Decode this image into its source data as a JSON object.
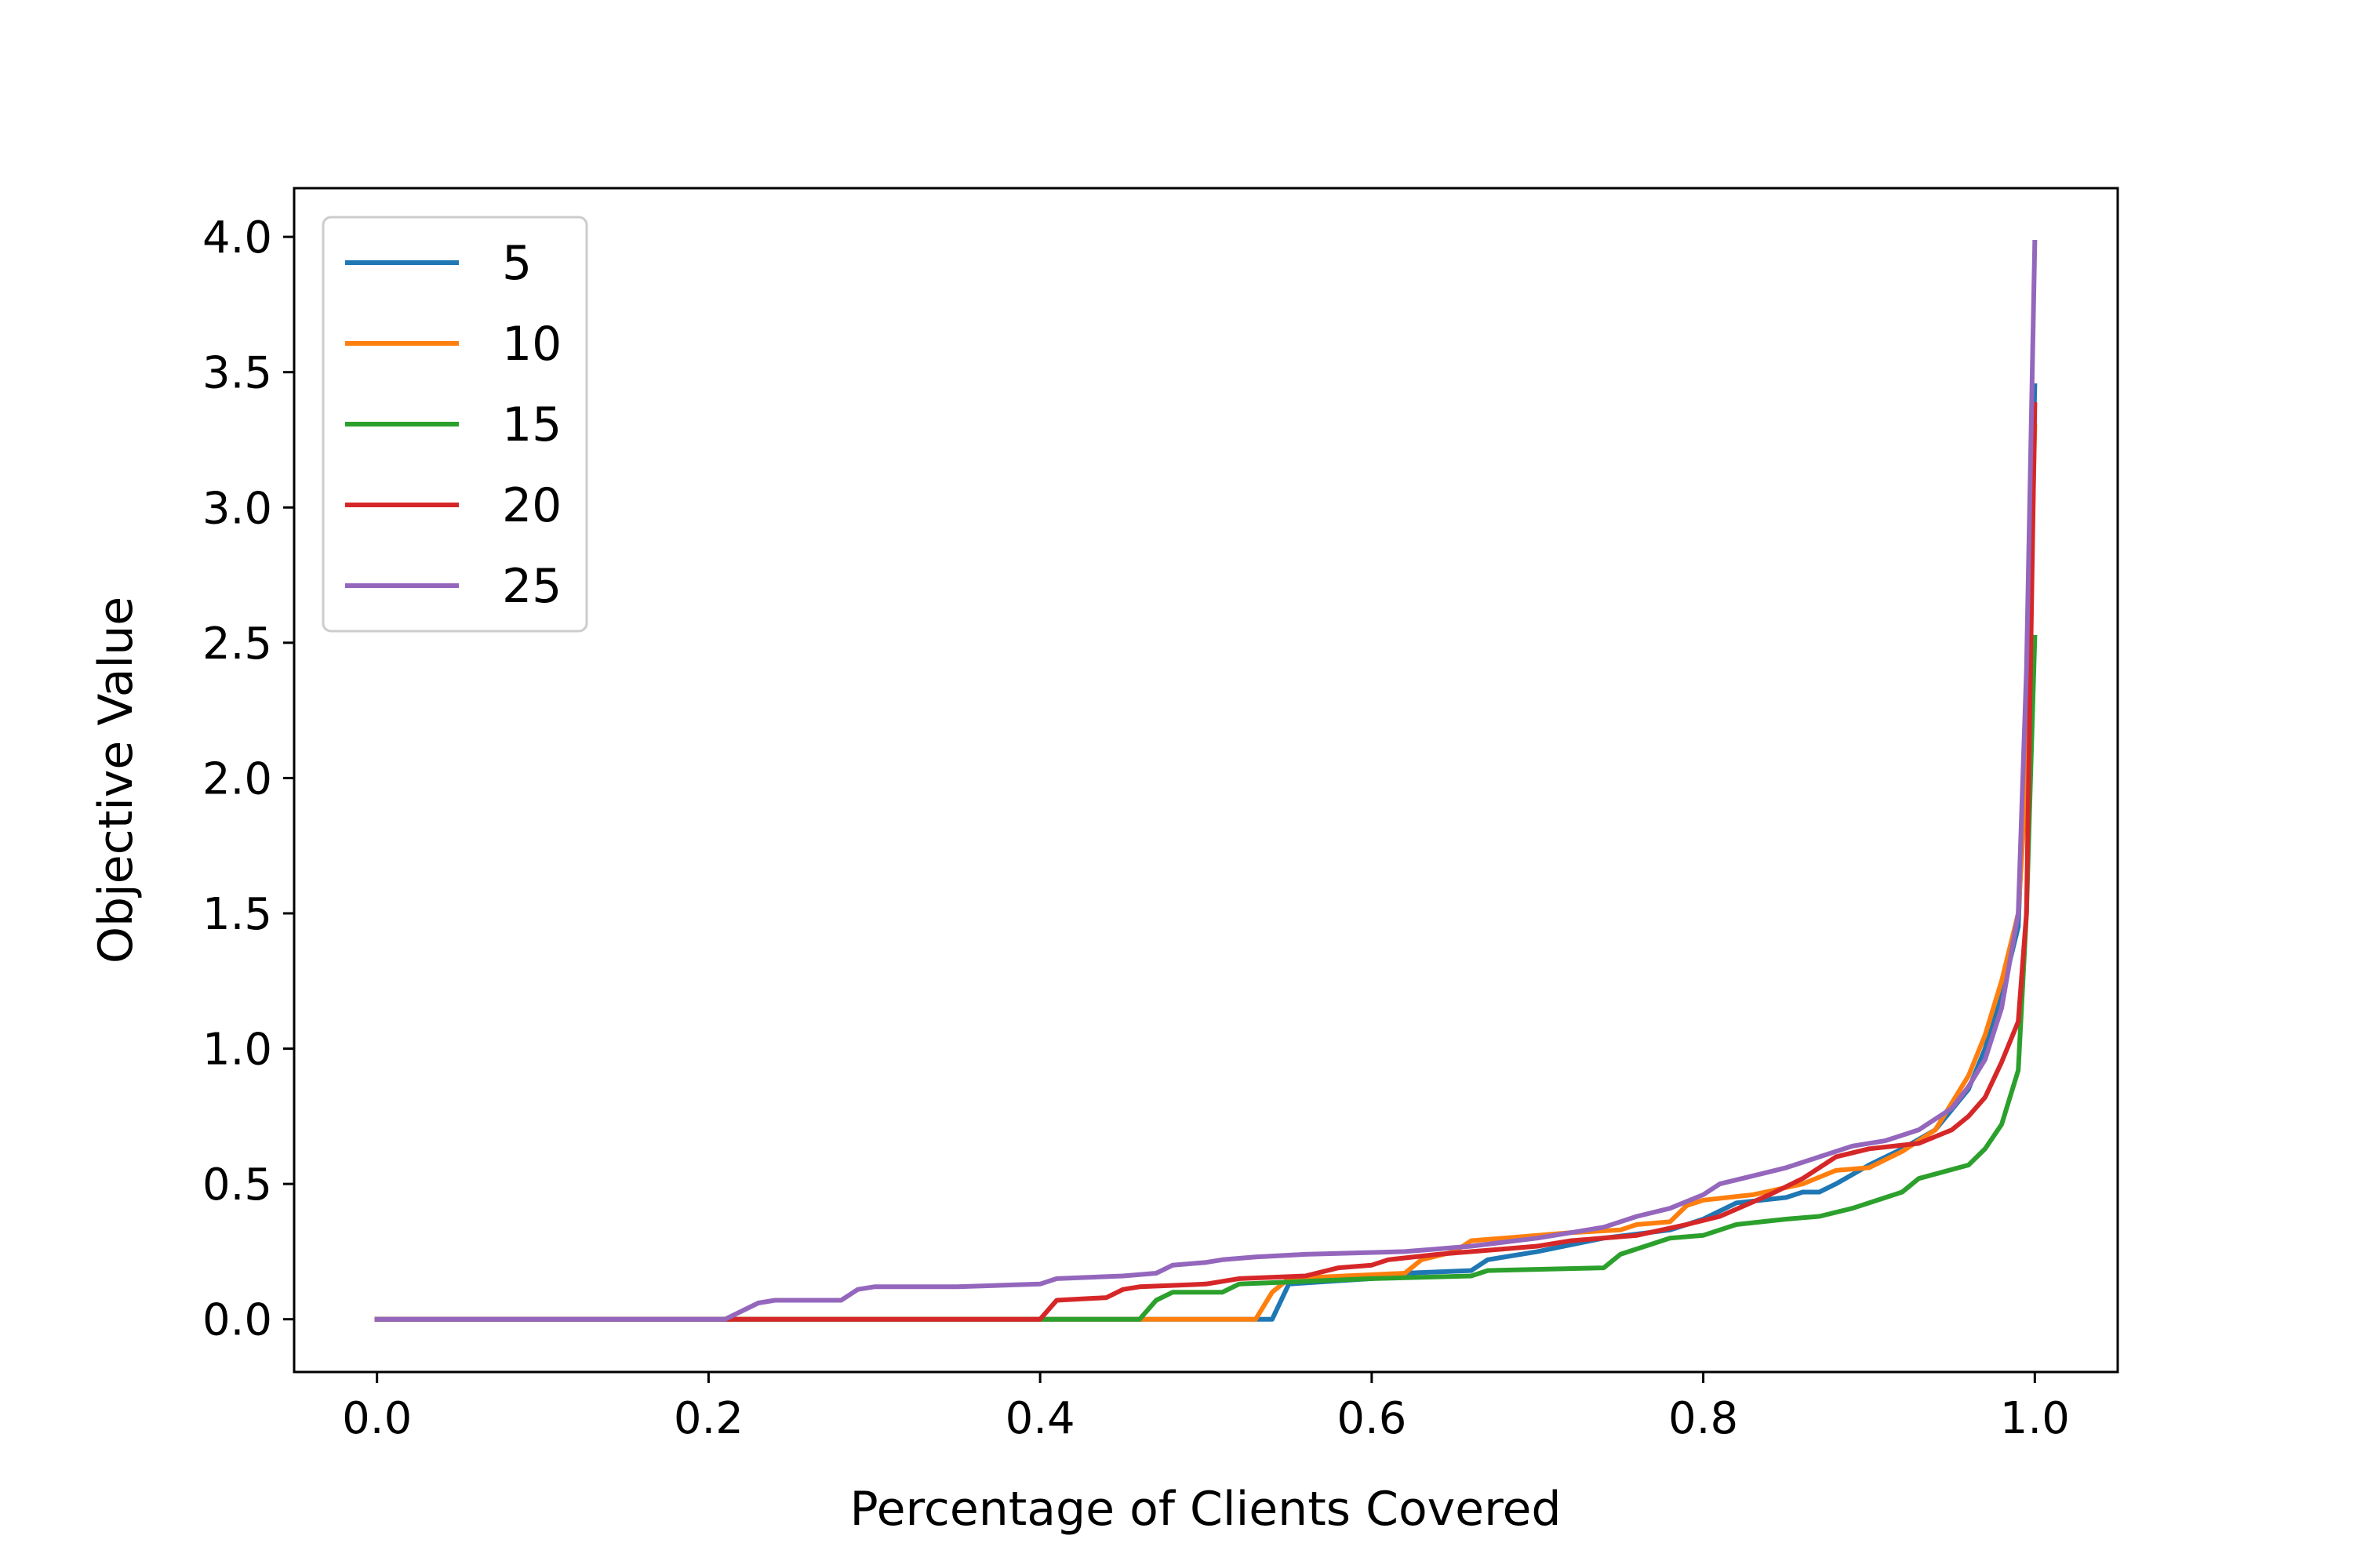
{
  "chart_data": {
    "type": "line",
    "title": "",
    "xlabel": "Percentage of Clients Covered",
    "ylabel": "Objective Value",
    "xlim": [
      -0.05,
      1.05
    ],
    "ylim": [
      -0.195,
      4.18
    ],
    "xticks": [
      "0.0",
      "0.2",
      "0.4",
      "0.6",
      "0.8",
      "1.0"
    ],
    "yticks": [
      "0.0",
      "0.5",
      "1.0",
      "1.5",
      "2.0",
      "2.5",
      "3.0",
      "3.5",
      "4.0"
    ],
    "grid": false,
    "legend_position": "upper-left",
    "series": [
      {
        "name": "5",
        "color": "#1f77b4",
        "points": [
          [
            0.0,
            0.0
          ],
          [
            0.54,
            0.0
          ],
          [
            0.55,
            0.13
          ],
          [
            0.6,
            0.15
          ],
          [
            0.62,
            0.17
          ],
          [
            0.66,
            0.18
          ],
          [
            0.67,
            0.22
          ],
          [
            0.7,
            0.25
          ],
          [
            0.74,
            0.3
          ],
          [
            0.78,
            0.33
          ],
          [
            0.8,
            0.37
          ],
          [
            0.82,
            0.43
          ],
          [
            0.85,
            0.45
          ],
          [
            0.86,
            0.47
          ],
          [
            0.87,
            0.47
          ],
          [
            0.88,
            0.5
          ],
          [
            0.9,
            0.57
          ],
          [
            0.92,
            0.63
          ],
          [
            0.94,
            0.7
          ],
          [
            0.96,
            0.85
          ],
          [
            0.97,
            1.0
          ],
          [
            0.98,
            1.2
          ],
          [
            0.99,
            1.45
          ],
          [
            0.995,
            2.2
          ],
          [
            1.0,
            3.45
          ]
        ]
      },
      {
        "name": "10",
        "color": "#ff7f0e",
        "points": [
          [
            0.0,
            0.0
          ],
          [
            0.46,
            0.0
          ],
          [
            0.53,
            0.0
          ],
          [
            0.54,
            0.1
          ],
          [
            0.55,
            0.15
          ],
          [
            0.62,
            0.17
          ],
          [
            0.63,
            0.22
          ],
          [
            0.65,
            0.25
          ],
          [
            0.66,
            0.29
          ],
          [
            0.68,
            0.3
          ],
          [
            0.72,
            0.32
          ],
          [
            0.75,
            0.33
          ],
          [
            0.76,
            0.35
          ],
          [
            0.78,
            0.36
          ],
          [
            0.79,
            0.42
          ],
          [
            0.8,
            0.44
          ],
          [
            0.83,
            0.46
          ],
          [
            0.86,
            0.5
          ],
          [
            0.88,
            0.55
          ],
          [
            0.9,
            0.56
          ],
          [
            0.92,
            0.62
          ],
          [
            0.94,
            0.7
          ],
          [
            0.96,
            0.9
          ],
          [
            0.97,
            1.05
          ],
          [
            0.98,
            1.25
          ],
          [
            0.99,
            1.5
          ],
          [
            0.995,
            2.0
          ],
          [
            1.0,
            3.3
          ]
        ]
      },
      {
        "name": "15",
        "color": "#2ca02c",
        "points": [
          [
            0.0,
            0.0
          ],
          [
            0.46,
            0.0
          ],
          [
            0.47,
            0.07
          ],
          [
            0.48,
            0.1
          ],
          [
            0.51,
            0.1
          ],
          [
            0.52,
            0.13
          ],
          [
            0.6,
            0.15
          ],
          [
            0.66,
            0.16
          ],
          [
            0.67,
            0.18
          ],
          [
            0.74,
            0.19
          ],
          [
            0.75,
            0.24
          ],
          [
            0.77,
            0.28
          ],
          [
            0.78,
            0.3
          ],
          [
            0.8,
            0.31
          ],
          [
            0.82,
            0.35
          ],
          [
            0.85,
            0.37
          ],
          [
            0.87,
            0.38
          ],
          [
            0.89,
            0.41
          ],
          [
            0.92,
            0.47
          ],
          [
            0.93,
            0.52
          ],
          [
            0.96,
            0.57
          ],
          [
            0.97,
            0.63
          ],
          [
            0.98,
            0.72
          ],
          [
            0.99,
            0.92
          ],
          [
            0.995,
            1.5
          ],
          [
            1.0,
            2.52
          ]
        ]
      },
      {
        "name": "20",
        "color": "#d62728",
        "points": [
          [
            0.0,
            0.0
          ],
          [
            0.4,
            0.0
          ],
          [
            0.41,
            0.07
          ],
          [
            0.44,
            0.08
          ],
          [
            0.45,
            0.11
          ],
          [
            0.46,
            0.12
          ],
          [
            0.5,
            0.13
          ],
          [
            0.52,
            0.15
          ],
          [
            0.56,
            0.16
          ],
          [
            0.58,
            0.19
          ],
          [
            0.6,
            0.2
          ],
          [
            0.61,
            0.22
          ],
          [
            0.64,
            0.24
          ],
          [
            0.68,
            0.26
          ],
          [
            0.7,
            0.27
          ],
          [
            0.72,
            0.29
          ],
          [
            0.76,
            0.31
          ],
          [
            0.79,
            0.35
          ],
          [
            0.81,
            0.38
          ],
          [
            0.84,
            0.46
          ],
          [
            0.86,
            0.52
          ],
          [
            0.88,
            0.6
          ],
          [
            0.9,
            0.63
          ],
          [
            0.93,
            0.65
          ],
          [
            0.95,
            0.7
          ],
          [
            0.96,
            0.75
          ],
          [
            0.97,
            0.82
          ],
          [
            0.98,
            0.95
          ],
          [
            0.99,
            1.1
          ],
          [
            0.995,
            1.5
          ],
          [
            1.0,
            3.38
          ]
        ]
      },
      {
        "name": "25",
        "color": "#9467bd",
        "points": [
          [
            0.0,
            0.0
          ],
          [
            0.21,
            0.0
          ],
          [
            0.23,
            0.06
          ],
          [
            0.24,
            0.07
          ],
          [
            0.28,
            0.07
          ],
          [
            0.29,
            0.11
          ],
          [
            0.3,
            0.12
          ],
          [
            0.35,
            0.12
          ],
          [
            0.4,
            0.13
          ],
          [
            0.41,
            0.15
          ],
          [
            0.45,
            0.16
          ],
          [
            0.47,
            0.17
          ],
          [
            0.48,
            0.2
          ],
          [
            0.5,
            0.21
          ],
          [
            0.51,
            0.22
          ],
          [
            0.53,
            0.23
          ],
          [
            0.56,
            0.24
          ],
          [
            0.62,
            0.25
          ],
          [
            0.64,
            0.26
          ],
          [
            0.66,
            0.27
          ],
          [
            0.7,
            0.3
          ],
          [
            0.72,
            0.32
          ],
          [
            0.74,
            0.34
          ],
          [
            0.76,
            0.38
          ],
          [
            0.78,
            0.41
          ],
          [
            0.8,
            0.46
          ],
          [
            0.81,
            0.5
          ],
          [
            0.83,
            0.53
          ],
          [
            0.85,
            0.56
          ],
          [
            0.87,
            0.6
          ],
          [
            0.89,
            0.64
          ],
          [
            0.91,
            0.66
          ],
          [
            0.93,
            0.7
          ],
          [
            0.95,
            0.78
          ],
          [
            0.96,
            0.86
          ],
          [
            0.97,
            0.96
          ],
          [
            0.98,
            1.15
          ],
          [
            0.99,
            1.5
          ],
          [
            0.995,
            2.4
          ],
          [
            1.0,
            3.98
          ]
        ]
      }
    ]
  }
}
